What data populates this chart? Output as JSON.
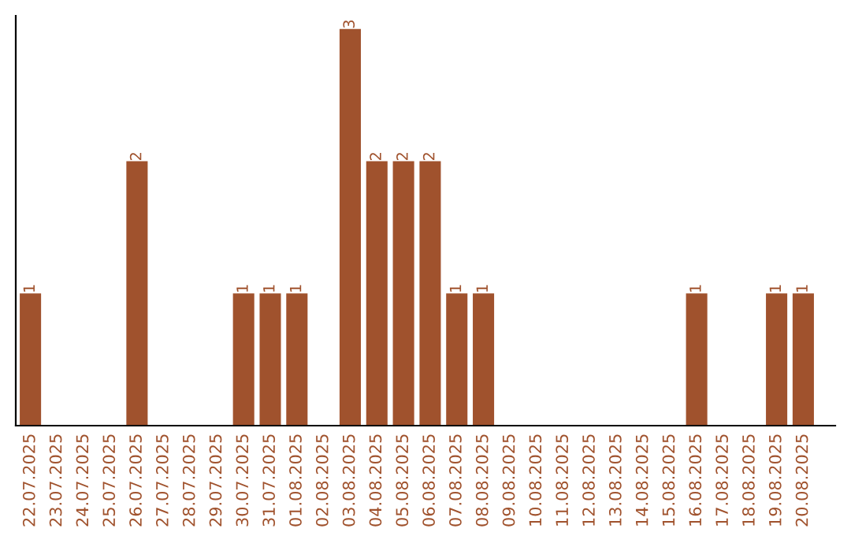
{
  "chart_data": {
    "type": "bar",
    "categories": [
      "22.07.2025",
      "23.07.2025",
      "24.07.2025",
      "25.07.2025",
      "26.07.2025",
      "27.07.2025",
      "28.07.2025",
      "29.07.2025",
      "30.07.2025",
      "31.07.2025",
      "01.08.2025",
      "02.08.2025",
      "03.08.2025",
      "04.08.2025",
      "05.08.2025",
      "06.08.2025",
      "07.08.2025",
      "08.08.2025",
      "09.08.2025",
      "10.08.2025",
      "11.08.2025",
      "12.08.2025",
      "13.08.2025",
      "14.08.2025",
      "15.08.2025",
      "16.08.2025",
      "17.08.2025",
      "18.08.2025",
      "19.08.2025",
      "20.08.2025"
    ],
    "values": [
      1,
      0,
      0,
      0,
      2,
      0,
      0,
      0,
      1,
      1,
      1,
      0,
      3,
      2,
      2,
      2,
      1,
      1,
      0,
      0,
      0,
      0,
      0,
      0,
      0,
      1,
      0,
      0,
      1,
      1
    ],
    "value_labels": [
      "1",
      null,
      null,
      null,
      "2",
      null,
      null,
      null,
      "1",
      "1",
      "1",
      null,
      "3",
      "2",
      "2",
      "2",
      "1",
      "1",
      null,
      null,
      null,
      null,
      null,
      null,
      null,
      "1",
      null,
      null,
      "1",
      "1"
    ],
    "color": "#a0522d",
    "ylim": [
      0,
      3.1
    ],
    "tick_labels": "x",
    "grid": false,
    "legend": false
  }
}
